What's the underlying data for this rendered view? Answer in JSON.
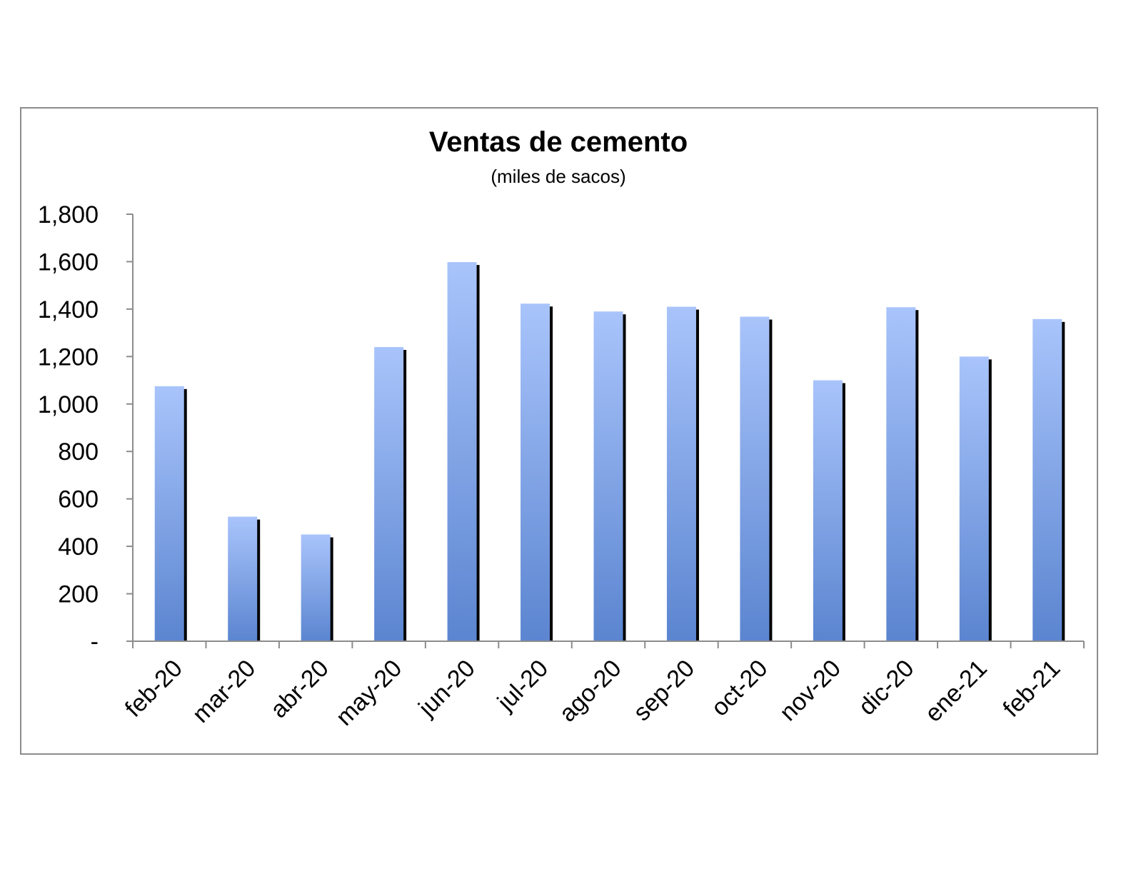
{
  "chart_data": {
    "type": "bar",
    "title": "Ventas de cemento",
    "subtitle": "(miles de sacos)",
    "xlabel": "",
    "ylabel": "",
    "categories": [
      "feb-20",
      "mar-20",
      "abr-20",
      "may-20",
      "jun-20",
      "jul-20",
      "ago-20",
      "sep-20",
      "oct-20",
      "nov-20",
      "dic-20",
      "ene-21",
      "feb-21"
    ],
    "values": [
      1075,
      525,
      450,
      1240,
      1598,
      1423,
      1390,
      1410,
      1368,
      1100,
      1408,
      1200,
      1358
    ],
    "ylim": [
      0,
      1800
    ],
    "yticks": [
      0,
      200,
      400,
      600,
      800,
      1000,
      1200,
      1400,
      1600,
      1800
    ],
    "ytick_labels": [
      "-",
      "200",
      "400",
      "600",
      "800",
      "1,000",
      "1,200",
      "1,400",
      "1,600",
      "1,800"
    ],
    "grid": false,
    "legend": "none",
    "colors": {
      "bar_top": "#a9c4fb",
      "bar_bottom": "#5b85d0",
      "bar_shadow": "#000000",
      "axis": "#8c8c8c"
    }
  }
}
